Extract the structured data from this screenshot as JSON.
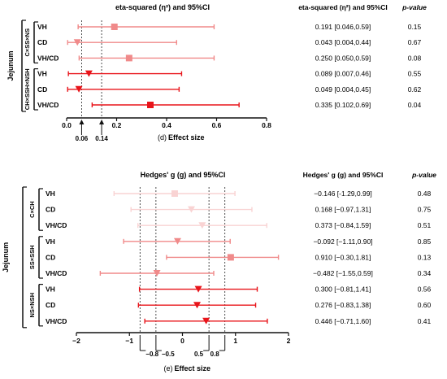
{
  "chart_data": [
    {
      "type": "forest",
      "panel_label": "(d)",
      "title": "eta-squared (η²) and 95%CI",
      "xlabel": "Effect size",
      "xlim": [
        0.0,
        0.8
      ],
      "x_ticks": [
        "0.0",
        "0.2",
        "0.4",
        "0.6",
        "0.8"
      ],
      "reference_lines": [
        0.06,
        0.14
      ],
      "reference_labels": [
        "0.06",
        "0.14"
      ],
      "outer_group": "Jejunum",
      "table_header": {
        "ci": "eta-squared (η²) and 95%CI",
        "p": "p-value"
      },
      "groups": [
        {
          "label": "C×SS×NS",
          "rows": [
            {
              "label": "VH",
              "estimate": 0.191,
              "lower": 0.046,
              "upper": 0.59,
              "ci_text": "0.191 [0.046,0.59]",
              "p": "0.15",
              "color": "#F08A8A",
              "marker": "square"
            },
            {
              "label": "CD",
              "estimate": 0.043,
              "lower": 0.004,
              "upper": 0.44,
              "ci_text": "0.043 [0.004,0.44]",
              "p": "0.67",
              "color": "#F08A8A",
              "marker": "triangle-down"
            },
            {
              "label": "VH/CD",
              "estimate": 0.25,
              "lower": 0.05,
              "upper": 0.59,
              "ci_text": "0.250 [0.050,0.59]",
              "p": "0.08",
              "color": "#F08A8A",
              "marker": "square"
            }
          ]
        },
        {
          "label": "CH×SSH×NSH",
          "rows": [
            {
              "label": "VH",
              "estimate": 0.089,
              "lower": 0.007,
              "upper": 0.46,
              "ci_text": "0.089 [0.007,0.46]",
              "p": "0.55",
              "color": "#E8141A",
              "marker": "triangle-down"
            },
            {
              "label": "CD",
              "estimate": 0.049,
              "lower": 0.004,
              "upper": 0.45,
              "ci_text": "0.049 [0.004,0.45]",
              "p": "0.62",
              "color": "#E8141A",
              "marker": "triangle-down"
            },
            {
              "label": "VH/CD",
              "estimate": 0.335,
              "lower": 0.102,
              "upper": 0.69,
              "ci_text": "0.335 [0.102,0.69]",
              "p": "0.04",
              "color": "#E8141A",
              "marker": "square"
            }
          ]
        }
      ]
    },
    {
      "type": "forest",
      "panel_label": "(e)",
      "title": "Hedges' g (g) and 95%CI",
      "xlabel": "Effect size",
      "xlim": [
        -2,
        2
      ],
      "x_ticks": [
        "−2",
        "−1",
        "0",
        "1",
        "2"
      ],
      "reference_lines": [
        -0.8,
        -0.5,
        0.5,
        0.8
      ],
      "reference_labels": [
        "−0.8",
        "−0.5",
        "0.5",
        "0.8"
      ],
      "outer_group": "Jejunum",
      "table_header": {
        "ci": "Hedges' g (g) and 95%CI",
        "p": "p-value"
      },
      "groups": [
        {
          "label": "C×CH",
          "rows": [
            {
              "label": "VH",
              "estimate": -0.146,
              "lower": -1.29,
              "upper": 0.99,
              "ci_text": "−0.146 [-1.29,0.99]",
              "p": "0.48",
              "color": "#F9D3D3",
              "marker": "square"
            },
            {
              "label": "CD",
              "estimate": 0.168,
              "lower": -0.97,
              "upper": 1.31,
              "ci_text": "0.168 [−0.97,1.31]",
              "p": "0.75",
              "color": "#F9D3D3",
              "marker": "triangle-down"
            },
            {
              "label": "VH/CD",
              "estimate": 0.373,
              "lower": -0.84,
              "upper": 1.59,
              "ci_text": "0.373 [−0.84,1.59]",
              "p": "0.51",
              "color": "#F9D3D3",
              "marker": "triangle-down"
            }
          ]
        },
        {
          "label": "SS×SSH",
          "rows": [
            {
              "label": "VH",
              "estimate": -0.092,
              "lower": -1.11,
              "upper": 0.9,
              "ci_text": "−0.092 [−1.11,0.90]",
              "p": "0.85",
              "color": "#F08A8A",
              "marker": "triangle-down"
            },
            {
              "label": "CD",
              "estimate": 0.91,
              "lower": -0.3,
              "upper": 1.81,
              "ci_text": "0.910 [−0.30,1.81]",
              "p": "0.13",
              "color": "#F08A8A",
              "marker": "square"
            },
            {
              "label": "VH/CD",
              "estimate": -0.482,
              "lower": -1.55,
              "upper": 0.59,
              "ci_text": "−0.482 [−1.55,0.59]",
              "p": "0.34",
              "color": "#F08A8A",
              "marker": "triangle-down"
            }
          ]
        },
        {
          "label": "NS×NSH",
          "rows": [
            {
              "label": "VH",
              "estimate": 0.3,
              "lower": -0.81,
              "upper": 1.41,
              "ci_text": "0.300 [−0.81,1.41]",
              "p": "0.56",
              "color": "#E8141A",
              "marker": "triangle-down"
            },
            {
              "label": "CD",
              "estimate": 0.276,
              "lower": -0.83,
              "upper": 1.38,
              "ci_text": "0.276 [−0.83,1.38]",
              "p": "0.60",
              "color": "#E8141A",
              "marker": "triangle-down"
            },
            {
              "label": "VH/CD",
              "estimate": 0.446,
              "lower": -0.71,
              "upper": 1.6,
              "ci_text": "0.446 [−0.71,1.60]",
              "p": "0.41",
              "color": "#E8141A",
              "marker": "triangle-down"
            }
          ]
        }
      ]
    }
  ]
}
